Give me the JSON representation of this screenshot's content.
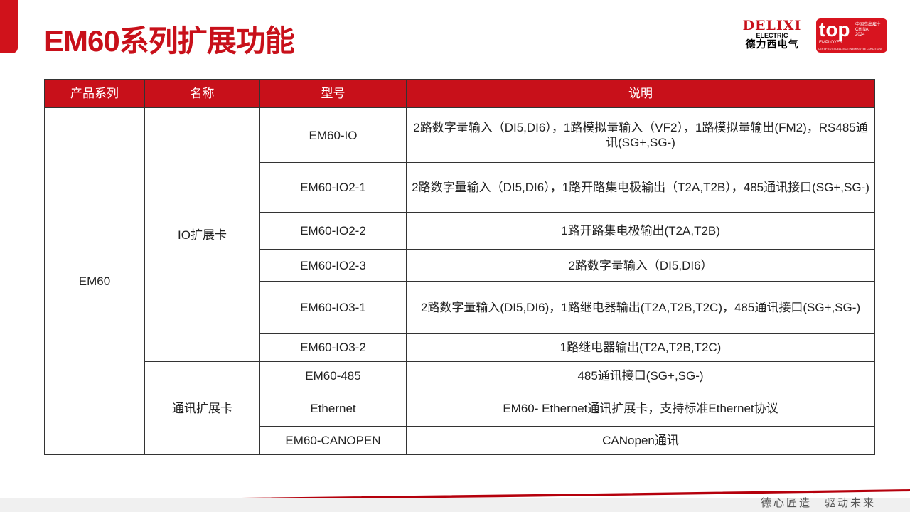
{
  "title": "EM60系列扩展功能",
  "logo": {
    "brand": "DELIXI",
    "sub": "ELECTRIC",
    "cn": "德力西电气"
  },
  "badge": {
    "top": "top",
    "employer": "EMPLOYER",
    "region_cn": "中国杰出雇主",
    "region": "CHINA",
    "year": "2024",
    "cert": "CERTIFIED EXCELLENCE IN EMPLOYEE CONDITIONS"
  },
  "colors": {
    "accent": "#c8101a"
  },
  "table": {
    "headers": [
      "产品系列",
      "名称",
      "型号",
      "说明"
    ],
    "series": "EM60",
    "groups": [
      {
        "name": "IO扩展卡",
        "rows": [
          {
            "model": "EM60-IO",
            "desc": "2路数字量输入（DI5,DI6），1路模拟量输入（VF2），1路模拟量输出(FM2)，RS485通讯(SG+,SG-)"
          },
          {
            "model": "EM60-IO2-1",
            "desc": "2路数字量输入（DI5,DI6），1路开路集电极输出（T2A,T2B），485通讯接口(SG+,SG-)"
          },
          {
            "model": "EM60-IO2-2",
            "desc": "1路开路集电极输出(T2A,T2B)"
          },
          {
            "model": "EM60-IO2-3",
            "desc": "2路数字量输入（DI5,DI6）"
          },
          {
            "model": "EM60-IO3-1",
            "desc": "2路数字量输入(DI5,DI6)，1路继电器输出(T2A,T2B,T2C)，485通讯接口(SG+,SG-)"
          },
          {
            "model": "EM60-IO3-2",
            "desc": "1路继电器输出(T2A,T2B,T2C)"
          }
        ]
      },
      {
        "name": "通讯扩展卡",
        "rows": [
          {
            "model": "EM60-485",
            "desc": "485通讯接口(SG+,SG-)"
          },
          {
            "model": "Ethernet",
            "desc": "EM60- Ethernet通讯扩展卡，支持标准Ethernet协议"
          },
          {
            "model": "EM60-CANOPEN",
            "desc": "CANopen通讯"
          }
        ]
      }
    ]
  },
  "footer": {
    "slogan": "德心匠造　驱动未来"
  }
}
